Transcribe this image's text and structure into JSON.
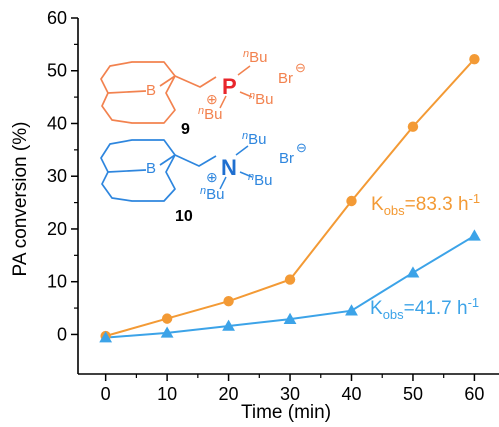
{
  "chart_data": {
    "type": "line",
    "xlabel": "Time (min)",
    "ylabel": "PA conversion (%)",
    "xlim": [
      -4.5,
      64
    ],
    "ylim": [
      -7.5,
      60
    ],
    "xticks": [
      0,
      10,
      20,
      30,
      40,
      50,
      60
    ],
    "yticks": [
      0,
      10,
      20,
      30,
      40,
      50,
      60
    ],
    "x_tick_labels": [
      "0",
      "10",
      "20",
      "30",
      "40",
      "50",
      "60"
    ],
    "y_tick_labels": [
      "0",
      "10",
      "20",
      "30",
      "40",
      "50",
      "60"
    ],
    "grid": false,
    "x": [
      0,
      10,
      20,
      30,
      40,
      50,
      60
    ],
    "series": [
      {
        "name": "9",
        "marker": "circle",
        "color": "#f39a35",
        "values": [
          -0.3,
          3.0,
          6.3,
          10.4,
          25.3,
          39.4,
          52.2
        ]
      },
      {
        "name": "10",
        "marker": "triangle",
        "color": "#3ca3e8",
        "values": [
          -0.6,
          0.3,
          1.6,
          2.9,
          4.5,
          11.7,
          18.7
        ]
      }
    ],
    "annotations": [
      {
        "series": "9",
        "k": "K",
        "sub": "obs",
        "value": "=83.3 h",
        "sup": "-1",
        "color": "#f39a35"
      },
      {
        "series": "10",
        "k": "K",
        "sub": "obs",
        "value": "=41.7 h",
        "sup": "-1",
        "color": "#3ca3e8"
      }
    ]
  },
  "structures": [
    {
      "label": "9",
      "color": "#f2824f",
      "boron": "B",
      "center_atom": "P",
      "center_color": "#e8262b",
      "charge": "⊕",
      "substituents": [
        "Bu",
        "Bu",
        "Bu"
      ],
      "n_prefix": "n",
      "counterion": "Br",
      "counter_charge": "⊖"
    },
    {
      "label": "10",
      "color": "#2e86de",
      "boron": "B",
      "center_atom": "N",
      "center_color": "#1f6fd0",
      "charge": "⊕",
      "substituents": [
        "Bu",
        "Bu",
        "Bu"
      ],
      "n_prefix": "n",
      "counterion": "Br",
      "counter_charge": "⊖"
    }
  ]
}
